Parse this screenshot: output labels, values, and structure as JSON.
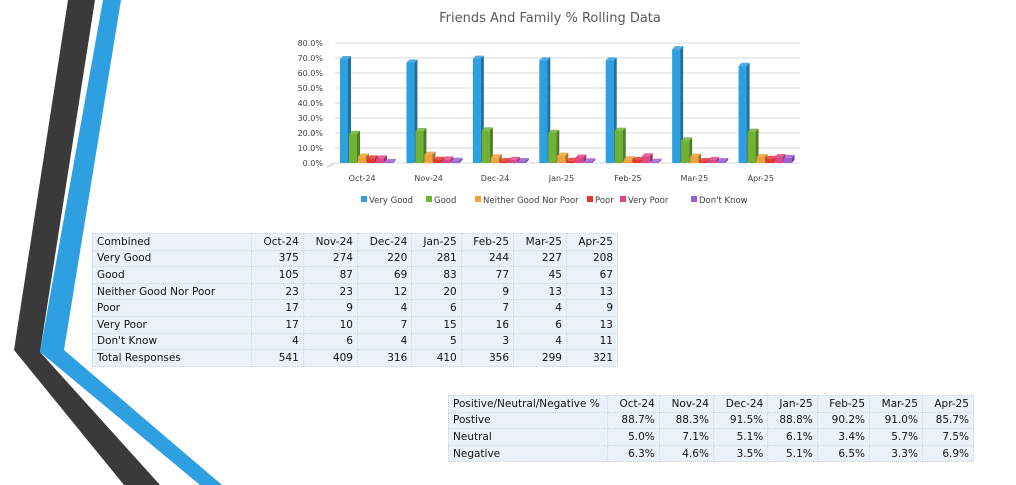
{
  "chart_data": {
    "type": "bar",
    "title": "Friends And Family % Rolling Data",
    "categories": [
      "Oct-24",
      "Nov-24",
      "Dec-24",
      "Jan-25",
      "Feb-25",
      "Mar-25",
      "Apr-25"
    ],
    "y_ticks": [
      "80.0%",
      "70.0%",
      "60.0%",
      "50.0%",
      "40.0%",
      "30.0%",
      "20.0%",
      "10.0%",
      "0.0%"
    ],
    "ylim": [
      0,
      80
    ],
    "legend_position": "bottom",
    "series": [
      {
        "name": "Very Good",
        "color": "#2e9fe0",
        "values": [
          69.3,
          67.0,
          69.6,
          68.5,
          68.5,
          75.9,
          64.8
        ]
      },
      {
        "name": "Good",
        "color": "#70b332",
        "values": [
          19.4,
          21.3,
          21.8,
          20.2,
          21.6,
          15.1,
          20.9
        ]
      },
      {
        "name": "Neither Good Nor Poor",
        "color": "#f2a23a",
        "values": [
          4.3,
          5.6,
          3.8,
          4.9,
          2.5,
          4.3,
          4.0
        ]
      },
      {
        "name": "Poor",
        "color": "#e8352f",
        "values": [
          3.1,
          2.2,
          1.3,
          1.5,
          2.0,
          1.3,
          2.8
        ]
      },
      {
        "name": "Very Poor",
        "color": "#e0468a",
        "values": [
          3.1,
          2.4,
          2.2,
          3.7,
          4.5,
          2.0,
          4.0
        ]
      },
      {
        "name": "Don't Know",
        "color": "#9b5fd6",
        "values": [
          0.7,
          1.5,
          1.3,
          1.2,
          0.8,
          1.3,
          3.4
        ]
      }
    ]
  },
  "table1": {
    "header": [
      "Combined",
      "Oct-24",
      "Nov-24",
      "Dec-24",
      "Jan-25",
      "Feb-25",
      "Mar-25",
      "Apr-25"
    ],
    "rows": [
      [
        "Very Good",
        "375",
        "274",
        "220",
        "281",
        "244",
        "227",
        "208"
      ],
      [
        "Good",
        "105",
        "87",
        "69",
        "83",
        "77",
        "45",
        "67"
      ],
      [
        "Neither Good Nor Poor",
        "23",
        "23",
        "12",
        "20",
        "9",
        "13",
        "13"
      ],
      [
        "Poor",
        "17",
        "9",
        "4",
        "6",
        "7",
        "4",
        "9"
      ],
      [
        "Very Poor",
        "17",
        "10",
        "7",
        "15",
        "16",
        "6",
        "13"
      ],
      [
        "Don't Know",
        "4",
        "6",
        "4",
        "5",
        "3",
        "4",
        "11"
      ],
      [
        "Total Responses",
        "541",
        "409",
        "316",
        "410",
        "356",
        "299",
        "321"
      ]
    ]
  },
  "table2": {
    "header": [
      "Positive/Neutral/Negative %",
      "Oct-24",
      "Nov-24",
      "Dec-24",
      "Jan-25",
      "Feb-25",
      "Mar-25",
      "Apr-25"
    ],
    "rows": [
      [
        "Postive",
        "88.7%",
        "88.3%",
        "91.5%",
        "88.8%",
        "90.2%",
        "91.0%",
        "85.7%"
      ],
      [
        "Neutral",
        "5.0%",
        "7.1%",
        "5.1%",
        "6.1%",
        "3.4%",
        "5.7%",
        "7.5%"
      ],
      [
        "Negative",
        "6.3%",
        "4.6%",
        "3.5%",
        "5.1%",
        "6.5%",
        "3.3%",
        "6.9%"
      ]
    ]
  }
}
